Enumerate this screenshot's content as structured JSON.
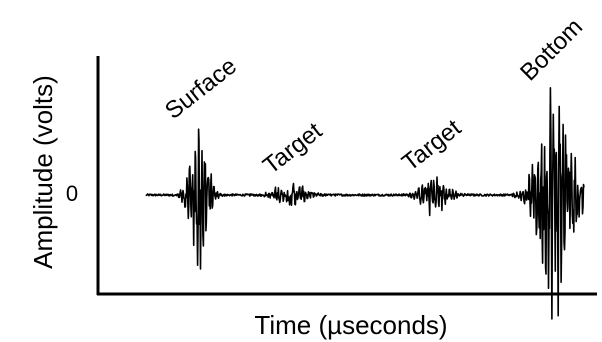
{
  "chart_data": {
    "type": "line",
    "xlabel": "Time (µseconds)",
    "ylabel": "Amplitude (volts)",
    "y_ticks": [
      "0"
    ],
    "grid": false,
    "legend": "none",
    "line_color": "#000000",
    "annotations": [
      {
        "text": "Surface",
        "x": 0.13
      },
      {
        "text": "Target",
        "x": 0.33
      },
      {
        "text": "Target",
        "x": 0.66
      },
      {
        "text": "Bottom",
        "x": 0.93
      }
    ],
    "series": [
      {
        "bursts": [
          {
            "center": 0.12,
            "width": 0.055,
            "amplitude": 0.7
          },
          {
            "center": 0.33,
            "width": 0.09,
            "amplitude": 0.12
          },
          {
            "center": 0.66,
            "width": 0.08,
            "amplitude": 0.18
          },
          {
            "center": 0.935,
            "width": 0.1,
            "amplitude": 1.0
          }
        ]
      }
    ]
  }
}
